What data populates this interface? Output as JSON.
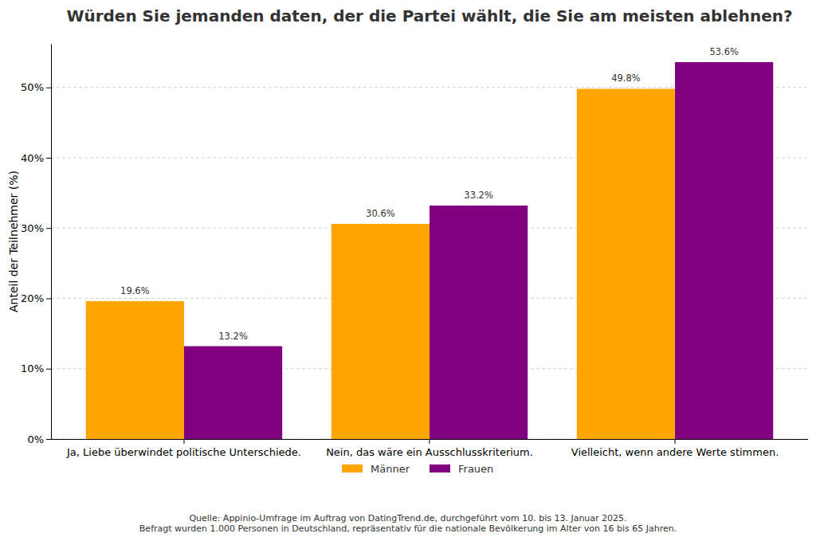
{
  "chart_data": {
    "type": "bar",
    "title": "Würden Sie jemanden daten, der die Partei wählt, die Sie am meisten ablehnen?",
    "y_label": "Anteil der Teilnehmer (%)",
    "categories": [
      "Ja, Liebe überwindet politische Unterschiede.",
      "Nein, das wäre ein Ausschlusskriterium.",
      "Vielleicht, wenn andere Werte stimmen."
    ],
    "series": [
      {
        "name": "Männer",
        "color": "#ffa500",
        "values": [
          19.6,
          30.6,
          49.8
        ],
        "value_labels": [
          "19.6%",
          "30.6%",
          "49.8%"
        ]
      },
      {
        "name": "Frauen",
        "color": "#800080",
        "values": [
          13.2,
          33.2,
          53.6
        ],
        "value_labels": [
          "13.2%",
          "33.2%",
          "53.6%"
        ]
      }
    ],
    "ylim": [
      0,
      56.2
    ],
    "yticks": [
      {
        "value": 0,
        "label": "0%"
      },
      {
        "value": 10,
        "label": "10%"
      },
      {
        "value": 20,
        "label": "20%"
      },
      {
        "value": 30,
        "label": "30%"
      },
      {
        "value": 40,
        "label": "40%"
      },
      {
        "value": 50,
        "label": "50%"
      }
    ],
    "grid": true,
    "data_labels": true,
    "legend": "bottom",
    "annotations": [
      "Quelle: Appinio-Umfrage im Auftrag von DatingTrend.de, durchgeführt vom 10. bis 13. Januar 2025.",
      "Befragt wurden 1.000 Personen in Deutschland, repräsentativ für die nationale Bevölkerung im Alter von 16 bis 65 Jahren."
    ]
  }
}
